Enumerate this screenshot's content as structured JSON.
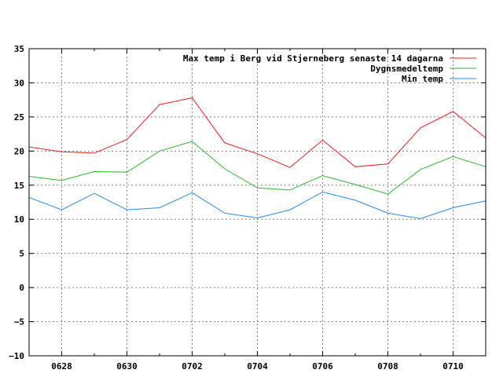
{
  "chart_data": {
    "type": "line",
    "x": [
      "0627",
      "0628",
      "0629",
      "0630",
      "0701",
      "0702",
      "0703",
      "0704",
      "0705",
      "0706",
      "0707",
      "0708",
      "0709",
      "0710",
      "0711"
    ],
    "x_tick_labels": [
      "0628",
      "0630",
      "0702",
      "0704",
      "0706",
      "0708",
      "0710"
    ],
    "ylim": [
      -10,
      35
    ],
    "y_ticks": [
      -10,
      -5,
      0,
      5,
      10,
      15,
      20,
      25,
      30,
      35
    ],
    "y_tick_labels": [
      "−10",
      "−5",
      "0",
      "5",
      "10",
      "15",
      "20",
      "25",
      "30",
      "35"
    ],
    "grid": true,
    "legend_position": "top-right",
    "series": [
      {
        "name": "Max temp i Berg vid Stjerneberg senaste 14 dagarna",
        "color": "#e8201c",
        "values": [
          20.6,
          19.9,
          19.7,
          21.7,
          26.8,
          27.8,
          21.2,
          19.6,
          17.6,
          21.6,
          17.7,
          18.1,
          23.4,
          25.8,
          21.9
        ]
      },
      {
        "name": "Dygnsmedeltemp",
        "color": "#2ab52a",
        "values": [
          16.3,
          15.7,
          17.0,
          16.9,
          20.0,
          21.4,
          17.4,
          14.6,
          14.3,
          16.4,
          15.1,
          13.7,
          17.3,
          19.2,
          17.7
        ]
      },
      {
        "name": "Min temp",
        "color": "#2a8ae0",
        "values": [
          13.2,
          11.4,
          13.8,
          11.4,
          11.7,
          13.9,
          10.9,
          10.2,
          11.4,
          14.0,
          12.8,
          10.9,
          10.1,
          11.7,
          12.7
        ]
      }
    ]
  }
}
